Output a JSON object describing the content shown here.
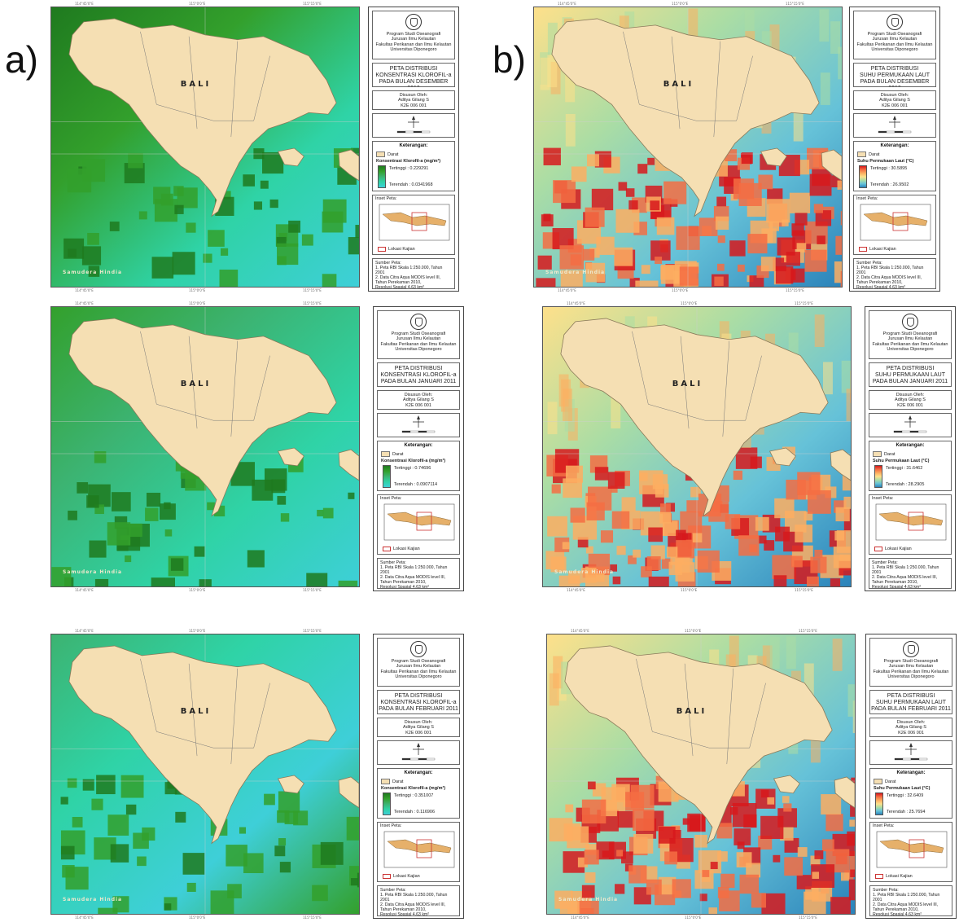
{
  "column_labels": [
    "a)",
    "b)"
  ],
  "maps": [
    {
      "id": "a1",
      "variable": "chl",
      "place": "BALI",
      "ocean": "Samudera Hindia",
      "top_ticks": [
        "114°45'0\"E",
        "115°0'0\"E",
        "115°15'0\"E"
      ],
      "side_ticks": [
        "8°30'0\"S",
        "8°45'0\"S"
      ],
      "panel": {
        "institution": [
          "Program Studi Oseanografi",
          "Jurusan Ilmu Kelautan",
          "Fakultas Perikanan dan Ilmu Kelautan",
          "Universitas Diponegoro"
        ],
        "title": [
          "PETA DISTRIBUSI",
          "KONSENTRASI KLOROFIL-a",
          "PADA BULAN DESEMBER 2010"
        ],
        "author": [
          "Disusun Oleh:",
          "Aditya Gilang S",
          "K2E 006 001"
        ],
        "legend_heading": "Keterangan:",
        "darat": "Darat",
        "legend_title": "Konsentrasi Klorofil-a (mg/m³)",
        "high": "Tertinggi : 0.229291",
        "low": "Terendah : 0.0341968",
        "inset_title": "Inset Peta:",
        "inset_label": "Lokasi Kajian",
        "source": [
          "Sumber Peta:",
          "1. Peta RBI Skala 1:250.000, Tahun 2001",
          "2. Data Citra Aqua MODIS level III,",
          "Tahun Perekaman 2010,",
          "Resolusi Spasial 4,63 km²"
        ]
      }
    },
    {
      "id": "b1",
      "variable": "sst",
      "place": "BALI",
      "ocean": "Samudera Hindia",
      "top_ticks": [
        "114°45'0\"E",
        "115°0'0\"E",
        "115°15'0\"E"
      ],
      "side_ticks": [
        "8°30'0\"S",
        "8°45'0\"S"
      ],
      "panel": {
        "institution": [
          "Program Studi Oseanografi",
          "Jurusan Ilmu Kelautan",
          "Fakultas Perikanan dan Ilmu Kelautan",
          "Universitas Diponegoro"
        ],
        "title": [
          "PETA DISTRIBUSI",
          "SUHU PERMUKAAN LAUT",
          "PADA BULAN DESEMBER 2010"
        ],
        "author": [
          "Disusun Oleh:",
          "Aditya Gilang S",
          "K2E 006 001"
        ],
        "legend_heading": "Keterangan:",
        "darat": "Darat",
        "legend_title": "Suhu Permukaan Laut (°C)",
        "high": "Tertinggi : 30.5895",
        "low": "Terendah : 26.9502",
        "inset_title": "Inset Peta:",
        "inset_label": "Lokasi Kajian",
        "source": [
          "Sumber Peta:",
          "1. Peta RBI Skala 1:250.000, Tahun 2001",
          "2. Data Citra Aqua MODIS level III,",
          "Tahun Perekaman 2010,",
          "Resolusi Spasial 4,63 km²"
        ]
      }
    },
    {
      "id": "a2",
      "variable": "chl",
      "place": "BALI",
      "ocean": "Samudera Hindia",
      "top_ticks": [
        "114°45'0\"E",
        "115°0'0\"E",
        "115°15'0\"E"
      ],
      "side_ticks": [
        "8°30'0\"S",
        "8°45'0\"S"
      ],
      "panel": {
        "institution": [
          "Program Studi Oseanografi",
          "Jurusan Ilmu Kelautan",
          "Fakultas Perikanan dan Ilmu Kelautan",
          "Universitas Diponegoro"
        ],
        "title": [
          "PETA DISTRIBUSI",
          "KONSENTRASI KLOROFIL-a",
          "PADA BULAN JANUARI 2011"
        ],
        "author": [
          "Disusun Oleh:",
          "Aditya Gilang S",
          "K2E 006 001"
        ],
        "legend_heading": "Keterangan:",
        "darat": "Darat",
        "legend_title": "Konsentrasi Klorofil-a (mg/m³)",
        "high": "Tertinggi : 0.74696",
        "low": "Terendah : 0.0907114",
        "inset_title": "Inset Peta:",
        "inset_label": "Lokasi Kajian",
        "source": [
          "Sumber Peta:",
          "1. Peta RBI Skala 1:250.000, Tahun 2001",
          "2. Data Citra Aqua MODIS level III,",
          "Tahun Perekaman 2010,",
          "Resolusi Spasial 4,63 km²"
        ]
      }
    },
    {
      "id": "b2",
      "variable": "sst",
      "place": "BALI",
      "ocean": "Samudera Hindia",
      "top_ticks": [
        "114°45'0\"E",
        "115°0'0\"E",
        "115°15'0\"E"
      ],
      "side_ticks": [
        "8°30'0\"S",
        "8°45'0\"S"
      ],
      "panel": {
        "institution": [
          "Program Studi Oseanografi",
          "Jurusan Ilmu Kelautan",
          "Fakultas Perikanan dan Ilmu Kelautan",
          "Universitas Diponegoro"
        ],
        "title": [
          "PETA DISTRIBUSI",
          "SUHU PERMUKAAN LAUT",
          "PADA BULAN JANUARI 2011"
        ],
        "author": [
          "Disusun Oleh:",
          "Aditya Gilang S",
          "K2E 006 001"
        ],
        "legend_heading": "Keterangan:",
        "darat": "Darat",
        "legend_title": "Suhu Permukaan Laut (°C)",
        "high": "Tertinggi : 31.6462",
        "low": "Terendah : 28.2905",
        "inset_title": "Inset Peta:",
        "inset_label": "Lokasi Kajian",
        "source": [
          "Sumber Peta:",
          "1. Peta RBI Skala 1:250.000, Tahun 2001",
          "2. Data Citra Aqua MODIS level III,",
          "Tahun Perekaman 2010,",
          "Resolusi Spasial 4,63 km²"
        ]
      }
    },
    {
      "id": "a3",
      "variable": "chl",
      "place": "BALI",
      "ocean": "Samudera Hindia",
      "top_ticks": [
        "114°45'0\"E",
        "115°0'0\"E",
        "115°15'0\"E"
      ],
      "side_ticks": [
        "8°30'0\"S",
        "8°45'0\"S"
      ],
      "panel": {
        "institution": [
          "Program Studi Oseanografi",
          "Jurusan Ilmu Kelautan",
          "Fakultas Perikanan dan Ilmu Kelautan",
          "Universitas Diponegoro"
        ],
        "title": [
          "PETA DISTRIBUSI",
          "KONSENTRASI KLOROFIL-a",
          "PADA BULAN FEBRUARI 2011"
        ],
        "author": [
          "Disusun Oleh:",
          "Aditya Gilang S",
          "K2E 006 001"
        ],
        "legend_heading": "Keterangan:",
        "darat": "Darat",
        "legend_title": "Konsentrasi Klorofil-a (mg/m³)",
        "high": "Tertinggi : 0.351007",
        "low": "Terendah : 0.116906",
        "inset_title": "Inset Peta:",
        "inset_label": "Lokasi Kajian",
        "source": [
          "Sumber Peta:",
          "1. Peta RBI Skala 1:250.000, Tahun 2001",
          "2. Data Citra Aqua MODIS level III,",
          "Tahun Perekaman 2010,",
          "Resolusi Spasial 4,63 km²"
        ]
      }
    },
    {
      "id": "b3",
      "variable": "sst",
      "place": "BALI",
      "ocean": "Samudera Hindia",
      "top_ticks": [
        "114°45'0\"E",
        "115°0'0\"E",
        "115°15'0\"E"
      ],
      "side_ticks": [
        "8°30'0\"S",
        "8°45'0\"S"
      ],
      "panel": {
        "institution": [
          "Program Studi Oseanografi",
          "Jurusan Ilmu Kelautan",
          "Fakultas Perikanan dan Ilmu Kelautan",
          "Universitas Diponegoro"
        ],
        "title": [
          "PETA DISTRIBUSI",
          "SUHU PERMUKAAN LAUT",
          "PADA BULAN FEBRUARI 2011"
        ],
        "author": [
          "Disusun Oleh:",
          "Aditya Gilang S",
          "K2E 006 001"
        ],
        "legend_heading": "Keterangan:",
        "darat": "Darat",
        "legend_title": "Suhu Permukaan Laut (°C)",
        "high": "Tertinggi : 32.6409",
        "low": "Terendah : 25.7694",
        "inset_title": "Inset Peta:",
        "inset_label": "Lokasi Kajian",
        "source": [
          "Sumber Peta:",
          "1. Peta RBI Skala 1:250.000, Tahun 2001",
          "2. Data Citra Aqua MODIS level III,",
          "Tahun Perekaman 2010,",
          "Resolusi Spasial 4,63 km²"
        ]
      }
    }
  ],
  "colors": {
    "land": "#f5dfb3",
    "chl_ramp": [
      "#1f7a1f",
      "#33a02c",
      "#3cb371",
      "#2fd3a6",
      "#3ecfd8"
    ],
    "sst_ramp": [
      "#d7191c",
      "#f46d43",
      "#fdae61",
      "#fee08b",
      "#abdda4",
      "#66c2d8",
      "#2b83ba"
    ]
  }
}
